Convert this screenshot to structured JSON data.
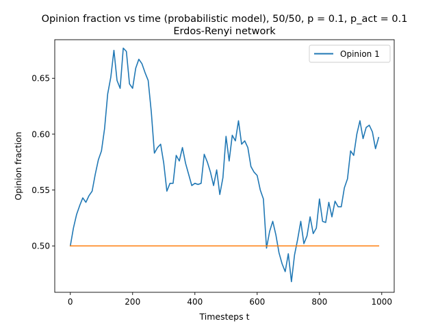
{
  "chart_data": {
    "type": "line",
    "title_line1": "Opinion fraction vs time (probabilistic model), 50/50, p = 0.1, p_act = 0.1",
    "title_line2": "Erdos-Renyi network",
    "xlabel": "Timesteps t",
    "ylabel": "Opinion fraction",
    "xlim": [
      -50,
      1040
    ],
    "ylim": [
      0.4585,
      0.6845
    ],
    "xticks": [
      0,
      200,
      400,
      600,
      800,
      1000
    ],
    "xtick_labels": [
      "0",
      "200",
      "400",
      "600",
      "800",
      "1000"
    ],
    "yticks": [
      0.5,
      0.55,
      0.6,
      0.65
    ],
    "ytick_labels": [
      "0.50",
      "0.55",
      "0.60",
      "0.65"
    ],
    "legend_position": "upper-right",
    "series": [
      {
        "name": "Opinion 1",
        "color": "#1f77b4",
        "x": [
          0,
          10,
          20,
          30,
          40,
          50,
          60,
          70,
          80,
          90,
          100,
          110,
          120,
          130,
          140,
          150,
          160,
          170,
          180,
          190,
          200,
          210,
          220,
          230,
          240,
          250,
          260,
          270,
          280,
          290,
          300,
          310,
          320,
          330,
          340,
          350,
          360,
          370,
          380,
          390,
          400,
          410,
          420,
          430,
          440,
          450,
          460,
          470,
          480,
          490,
          500,
          510,
          520,
          530,
          540,
          550,
          560,
          570,
          580,
          590,
          600,
          610,
          620,
          630,
          640,
          650,
          660,
          670,
          680,
          690,
          700,
          710,
          720,
          730,
          740,
          750,
          760,
          770,
          780,
          790,
          800,
          810,
          820,
          830,
          840,
          850,
          860,
          870,
          880,
          890,
          900,
          910,
          920,
          930,
          940,
          950,
          960,
          970,
          980,
          990
        ],
        "y": [
          0.5,
          0.516,
          0.528,
          0.536,
          0.543,
          0.539,
          0.545,
          0.549,
          0.564,
          0.577,
          0.585,
          0.605,
          0.636,
          0.651,
          0.675,
          0.648,
          0.641,
          0.677,
          0.674,
          0.645,
          0.641,
          0.659,
          0.667,
          0.663,
          0.655,
          0.648,
          0.62,
          0.583,
          0.588,
          0.591,
          0.574,
          0.549,
          0.556,
          0.556,
          0.581,
          0.576,
          0.588,
          0.574,
          0.564,
          0.554,
          0.556,
          0.555,
          0.556,
          0.582,
          0.575,
          0.566,
          0.554,
          0.568,
          0.546,
          0.561,
          0.598,
          0.576,
          0.599,
          0.594,
          0.612,
          0.591,
          0.594,
          0.588,
          0.571,
          0.566,
          0.563,
          0.55,
          0.542,
          0.498,
          0.513,
          0.522,
          0.51,
          0.494,
          0.484,
          0.477,
          0.493,
          0.468,
          0.492,
          0.506,
          0.522,
          0.502,
          0.509,
          0.526,
          0.511,
          0.516,
          0.542,
          0.522,
          0.521,
          0.539,
          0.526,
          0.54,
          0.535,
          0.535,
          0.552,
          0.56,
          0.585,
          0.581,
          0.6,
          0.612,
          0.596,
          0.606,
          0.608,
          0.602,
          0.587,
          0.597
        ]
      },
      {
        "name": "",
        "color": "#ff7f0e",
        "x": [
          0,
          990
        ],
        "y": [
          0.5,
          0.5
        ]
      }
    ]
  }
}
